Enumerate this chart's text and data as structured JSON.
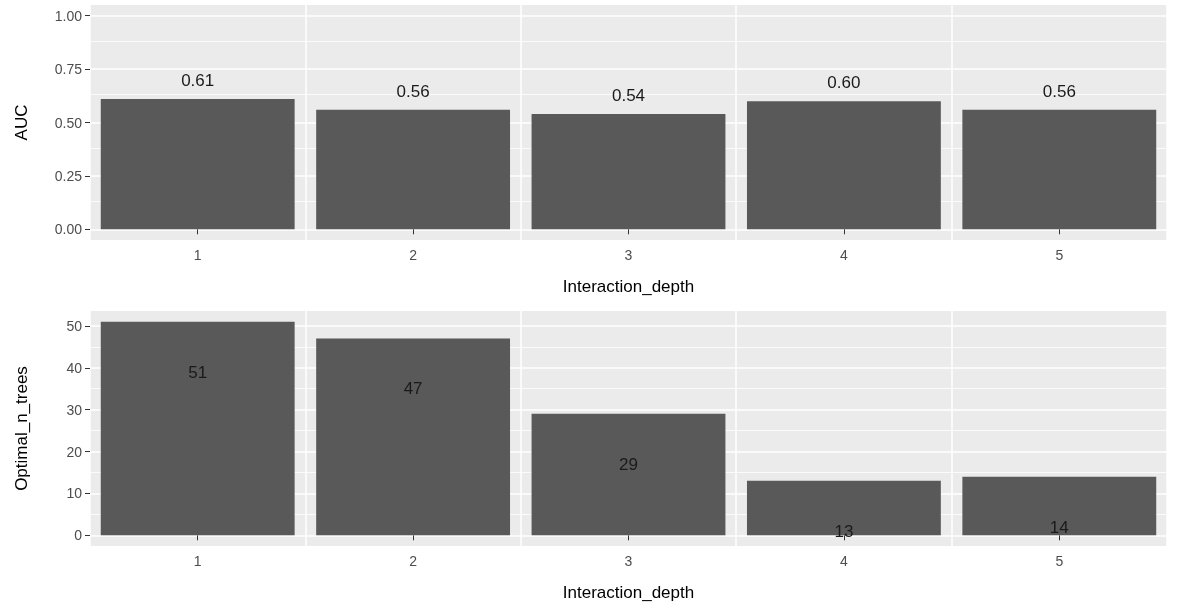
{
  "chart_data": [
    {
      "type": "bar",
      "xlabel": "Interaction_depth",
      "ylabel": "AUC",
      "categories": [
        "1",
        "2",
        "3",
        "4",
        "5"
      ],
      "values": [
        0.61,
        0.56,
        0.54,
        0.6,
        0.56
      ],
      "value_labels": [
        "0.61",
        "0.56",
        "0.54",
        "0.60",
        "0.56"
      ],
      "color": "#595959",
      "ylim": [
        -0.05,
        1.05
      ],
      "yticks": [
        {
          "value": 0,
          "label": "0.00"
        },
        {
          "value": 0.25,
          "label": "0.25"
        },
        {
          "value": 0.5,
          "label": "0.50"
        },
        {
          "value": 0.75,
          "label": "0.75"
        },
        {
          "value": 1,
          "label": "1.00"
        }
      ],
      "grid": true
    },
    {
      "type": "bar",
      "xlabel": "Interaction_depth",
      "ylabel": "Optimal_n_trees",
      "categories": [
        "1",
        "2",
        "3",
        "4",
        "5"
      ],
      "values": [
        51,
        47,
        29,
        13,
        14
      ],
      "color": "#595959",
      "data_labels": true,
      "ylim": [
        -2.55,
        53.55
      ],
      "yticks": [
        0,
        10,
        20,
        30,
        40,
        50
      ],
      "grid": true
    }
  ]
}
